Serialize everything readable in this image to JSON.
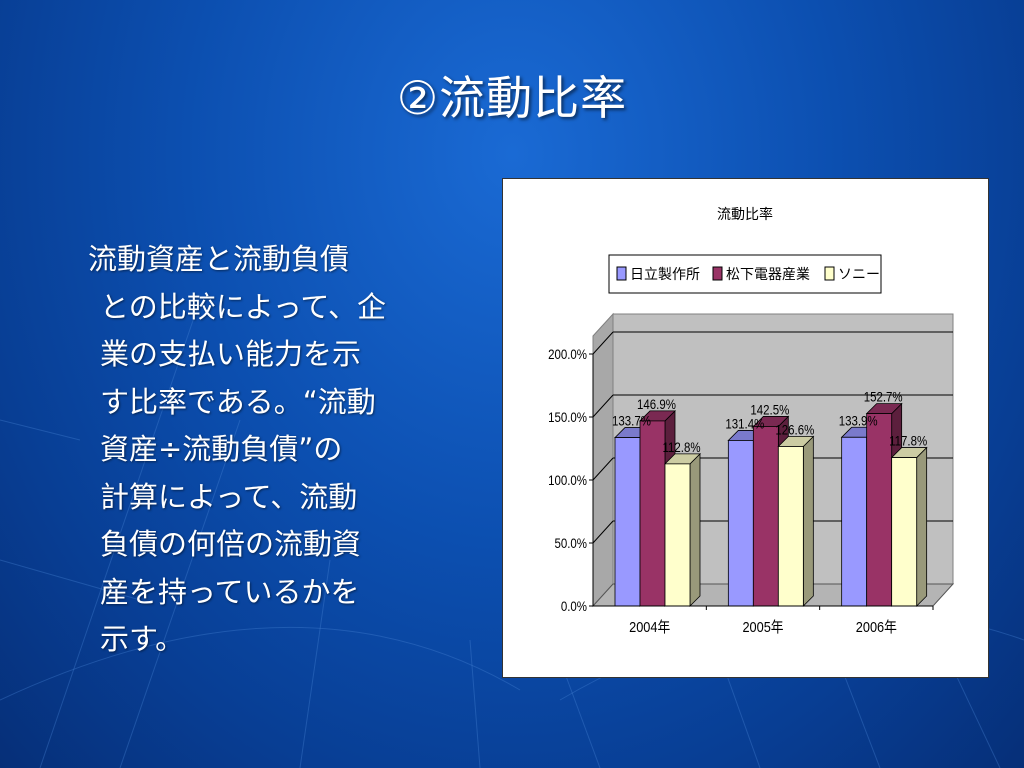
{
  "slide": {
    "title": "②流動比率",
    "body_lines": [
      "流動資産と流動負債",
      "との比較によって、企",
      "業の支払い能力を示",
      "す比率である。“流動",
      "資産÷流動負債”の",
      "計算によって、流動",
      "負債の何倍の流動資",
      "産を持っているかを",
      "示す。"
    ]
  },
  "chart_data": {
    "type": "bar",
    "title": "流動比率",
    "categories": [
      "2004年",
      "2005年",
      "2006年"
    ],
    "series": [
      {
        "name": "日立製作所",
        "values": [
          133.7,
          131.4,
          133.9
        ],
        "labels": [
          "133.7%",
          "131.4%",
          "133.9%"
        ],
        "color": "#9999ff"
      },
      {
        "name": "松下電器産業",
        "values": [
          146.9,
          142.5,
          152.7
        ],
        "labels": [
          "146.9%",
          "142.5%",
          "152.7%"
        ],
        "color": "#993366"
      },
      {
        "name": "ソニー",
        "values": [
          112.8,
          126.6,
          117.8
        ],
        "labels": [
          "112.8%",
          "126.6%",
          "117.8%"
        ],
        "color": "#ffffcc"
      }
    ],
    "yticks": [
      "0.0%",
      "50.0%",
      "100.0%",
      "150.0%",
      "200.0%"
    ],
    "ylim": [
      0,
      200
    ],
    "legend_position": "top",
    "grid": true,
    "style": "3d-clustered-column"
  }
}
